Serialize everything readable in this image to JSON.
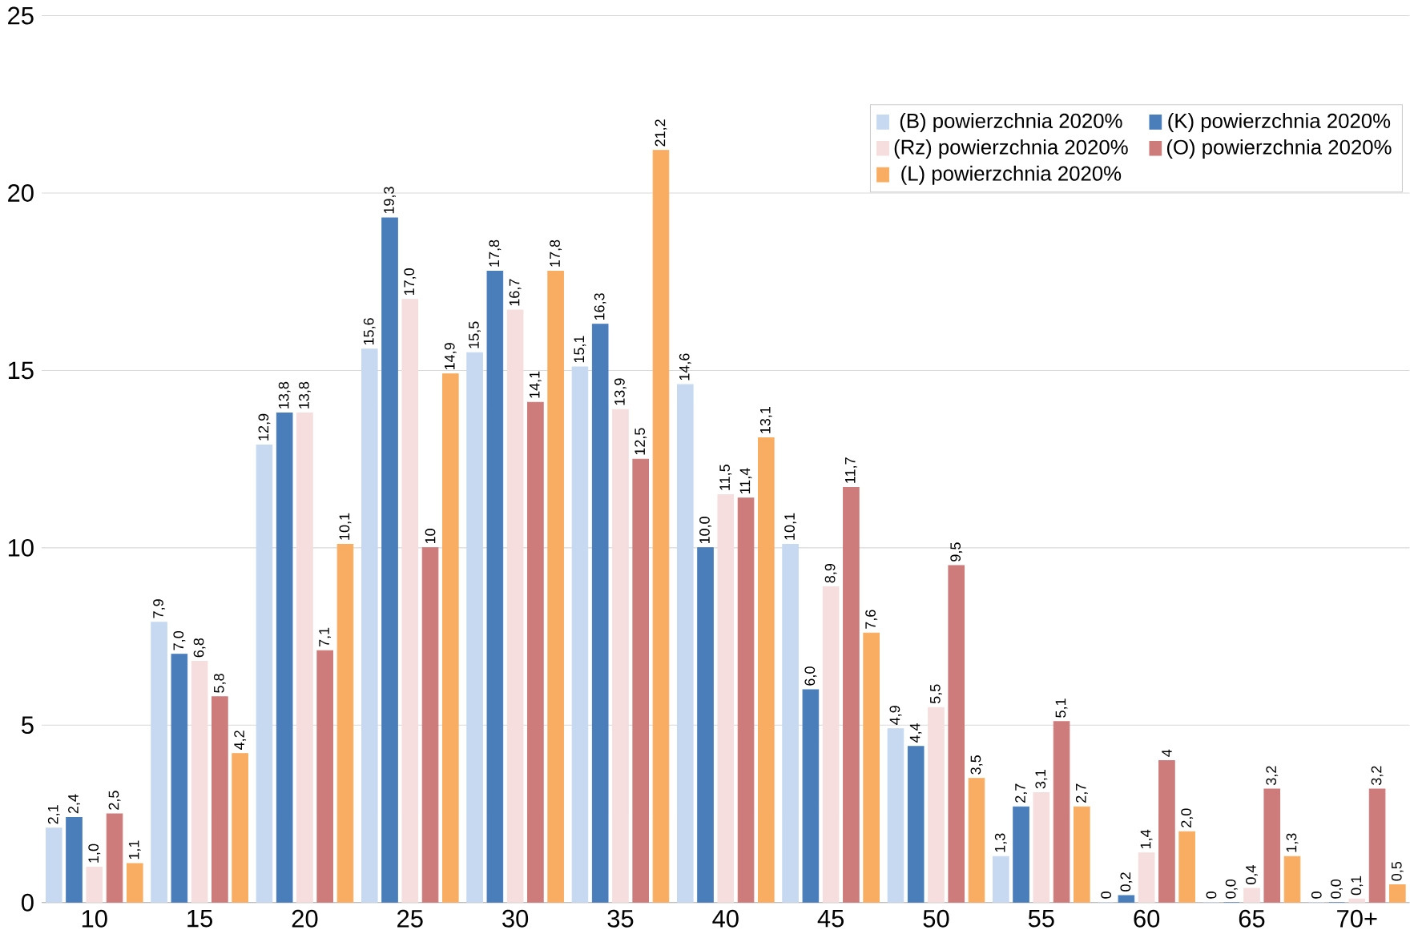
{
  "chart_data": {
    "type": "bar",
    "categories": [
      "10",
      "15",
      "20",
      "25",
      "30",
      "35",
      "40",
      "45",
      "50",
      "55",
      "60",
      "65",
      "70+"
    ],
    "series": [
      {
        "name": "(B) powierzchnia 2020%",
        "color": "#c6d9f1",
        "values": [
          2.1,
          7.9,
          12.9,
          15.6,
          15.5,
          15.1,
          14.6,
          10.1,
          4.9,
          1.3,
          0,
          0,
          0
        ],
        "value_labels": [
          "2,1",
          "7,9",
          "12,9",
          "15,6",
          "15,5",
          "15,1",
          "14,6",
          "10,1",
          "4,9",
          "1,3",
          "0",
          "0",
          "0"
        ]
      },
      {
        "name": "(K) powierzchnia 2020%",
        "color": "#4a7ebb",
        "values": [
          2.4,
          7.0,
          13.8,
          19.3,
          17.8,
          16.3,
          10.0,
          6.0,
          4.4,
          2.7,
          0.2,
          0.0,
          0.0
        ],
        "value_labels": [
          "2,4",
          "7,0",
          "13,8",
          "19,3",
          "17,8",
          "16,3",
          "10,0",
          "6,0",
          "4,4",
          "2,7",
          "0,2",
          "0,0",
          "0,0"
        ]
      },
      {
        "name": "(Rz) powierzchnia 2020%",
        "color": "#f5dedd",
        "values": [
          1.0,
          6.8,
          13.8,
          17.0,
          16.7,
          13.9,
          11.5,
          8.9,
          5.5,
          3.1,
          1.4,
          0.4,
          0.1
        ],
        "value_labels": [
          "1,0",
          "6,8",
          "13,8",
          "17,0",
          "16,7",
          "13,9",
          "11,5",
          "8,9",
          "5,5",
          "3,1",
          "1,4",
          "0,4",
          "0,1"
        ]
      },
      {
        "name": "(O) powierzchnia 2020%",
        "color": "#cd7b7b",
        "values": [
          2.5,
          5.8,
          7.1,
          10,
          14.1,
          12.5,
          11.4,
          11.7,
          9.5,
          5.1,
          4,
          3.2,
          3.2
        ],
        "value_labels": [
          "2,5",
          "5,8",
          "7,1",
          "10",
          "14,1",
          "12,5",
          "11,4",
          "11,7",
          "9,5",
          "5,1",
          "4",
          "3,2",
          "3,2"
        ]
      },
      {
        "name": "(L) powierzchnia 2020%",
        "color": "#f9ad62",
        "values": [
          1.1,
          4.2,
          10.1,
          14.9,
          17.8,
          21.2,
          13.1,
          7.6,
          3.5,
          2.7,
          2.0,
          1.3,
          0.5
        ],
        "value_labels": [
          "1,1",
          "4,2",
          "10,1",
          "14,9",
          "17,8",
          "21,2",
          "13,1",
          "7,6",
          "3,5",
          "2,7",
          "2,0",
          "1,3",
          "0,5"
        ]
      }
    ],
    "ylim": [
      0,
      25
    ],
    "yticks": [
      0,
      5,
      10,
      15,
      20,
      25
    ],
    "grid": "y",
    "legend": "top right"
  }
}
